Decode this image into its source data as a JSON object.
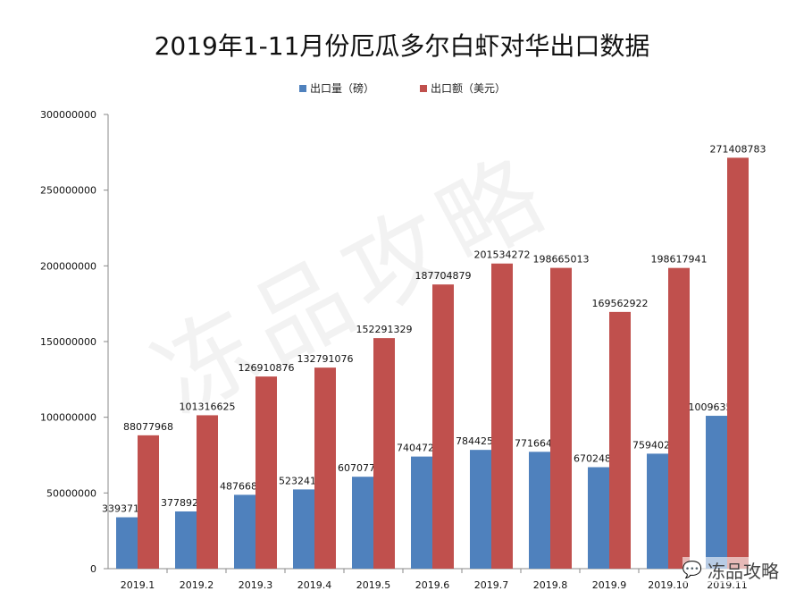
{
  "chart_data": {
    "type": "bar",
    "title": "2019年1-11月份厄瓜多尔白虾对华出口数据",
    "xlabel": "",
    "ylabel": "",
    "ylim": [
      0,
      300000000
    ],
    "yticks": [
      "0",
      "50000000",
      "100000000",
      "150000000",
      "200000000",
      "250000000",
      "300000000"
    ],
    "ytick_values": [
      0,
      50000000,
      100000000,
      150000000,
      200000000,
      250000000,
      300000000
    ],
    "grid": false,
    "legend_position": "top-center",
    "categories": [
      "2019.1",
      "2019.2",
      "2019.3",
      "2019.4",
      "2019.5",
      "2019.6",
      "2019.7",
      "2019.8",
      "2019.9",
      "2019.10",
      "2019.11"
    ],
    "series": [
      {
        "name": "出口量（磅）",
        "color": "#4f81bd",
        "values": [
          33937126,
          37789276,
          48766800,
          52324172,
          60707798,
          74047217,
          78442571,
          77166463,
          67024856,
          75940266,
          100963501
        ]
      },
      {
        "name": "出口额（美元）",
        "color": "#c0504d",
        "values": [
          88077968,
          101316625,
          126910876,
          132791076,
          152291329,
          187704879,
          201534272,
          198665013,
          169562922,
          198617941,
          271408783
        ]
      }
    ]
  },
  "watermark": "冻品攻略",
  "logo_text": "冻品攻略"
}
